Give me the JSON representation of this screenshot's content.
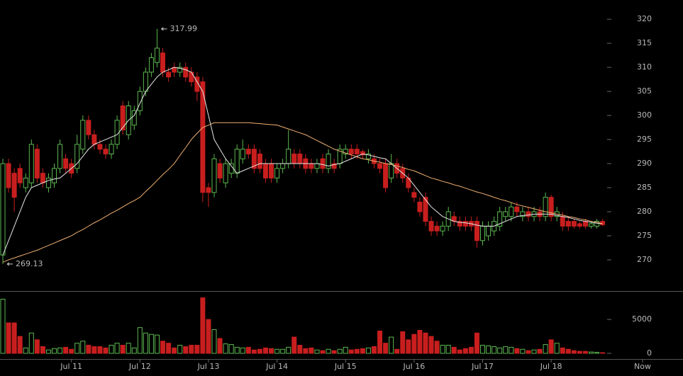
{
  "chart_data": {
    "type": "candlestick",
    "up_color": "#5cb84f",
    "down_color": "#c81e1e",
    "categories": [
      null,
      null,
      null,
      null,
      null,
      null,
      null,
      null,
      null,
      null,
      null,
      null,
      "Jul 11",
      null,
      null,
      null,
      null,
      null,
      null,
      null,
      null,
      null,
      null,
      null,
      "Jul 12",
      null,
      null,
      null,
      null,
      null,
      null,
      null,
      null,
      null,
      null,
      null,
      "Jul 13",
      null,
      null,
      null,
      null,
      null,
      null,
      null,
      null,
      null,
      null,
      null,
      "Jul 14",
      null,
      null,
      null,
      null,
      null,
      null,
      null,
      null,
      null,
      null,
      null,
      "Jul 15",
      null,
      null,
      null,
      null,
      null,
      null,
      null,
      null,
      null,
      null,
      null,
      "Jul 16",
      null,
      null,
      null,
      null,
      null,
      null,
      null,
      null,
      null,
      null,
      null,
      "Jul 17",
      null,
      null,
      null,
      null,
      null,
      null,
      null,
      null,
      null,
      null,
      null,
      "Jul 18",
      null,
      null,
      null,
      null,
      null,
      null,
      null,
      null,
      null,
      null,
      null,
      null,
      null,
      null,
      null,
      "Now"
    ],
    "ohlc": [
      [
        271,
        291,
        269.13,
        290
      ],
      [
        290,
        291,
        284,
        285
      ],
      [
        288,
        289,
        280,
        283
      ],
      [
        289,
        290,
        285,
        286
      ],
      [
        285,
        288,
        284,
        287
      ],
      [
        286,
        295,
        285,
        294
      ],
      [
        293,
        294,
        286,
        287
      ],
      [
        288,
        289,
        285,
        286
      ],
      [
        285,
        288,
        284,
        287
      ],
      [
        286,
        290,
        285,
        289
      ],
      [
        289,
        295,
        288,
        294
      ],
      [
        291,
        292,
        288,
        289
      ],
      [
        290,
        291,
        287,
        288
      ],
      [
        289,
        296,
        288,
        294
      ],
      [
        293,
        300,
        292,
        299
      ],
      [
        299,
        300,
        295,
        296
      ],
      [
        296,
        297,
        293,
        294
      ],
      [
        294,
        295,
        292,
        293
      ],
      [
        293,
        294,
        291,
        292
      ],
      [
        292,
        295,
        291,
        294
      ],
      [
        294,
        300,
        293,
        299
      ],
      [
        302,
        303,
        296,
        297
      ],
      [
        296,
        303,
        295,
        302
      ],
      [
        298,
        302,
        297,
        301
      ],
      [
        301,
        306,
        300,
        305
      ],
      [
        305,
        310,
        304,
        309
      ],
      [
        309,
        313,
        308,
        312
      ],
      [
        311,
        317.99,
        310,
        314
      ],
      [
        313,
        314,
        308,
        309
      ],
      [
        309,
        310,
        307,
        308
      ],
      [
        310,
        311,
        308,
        309
      ],
      [
        309,
        311,
        308,
        310
      ],
      [
        310,
        311,
        307,
        308
      ],
      [
        309,
        310,
        306,
        307
      ],
      [
        308,
        309,
        303,
        305
      ],
      [
        307,
        308,
        282,
        284
      ],
      [
        285,
        286,
        281,
        284
      ],
      [
        284,
        292,
        283,
        291
      ],
      [
        290,
        291,
        286,
        287
      ],
      [
        286,
        291,
        285,
        290
      ],
      [
        288,
        291,
        287,
        290
      ],
      [
        288,
        294,
        287,
        293
      ],
      [
        291,
        295,
        290,
        293
      ],
      [
        293,
        294,
        291,
        292
      ],
      [
        293,
        294,
        288,
        289
      ],
      [
        292,
        293,
        288,
        289
      ],
      [
        290,
        291,
        286,
        287
      ],
      [
        290,
        291,
        286,
        287
      ],
      [
        287,
        290,
        286,
        289
      ],
      [
        289,
        291,
        288,
        290
      ],
      [
        290,
        297,
        289,
        293
      ],
      [
        292,
        293,
        289,
        290
      ],
      [
        292,
        293,
        289,
        290
      ],
      [
        291,
        292,
        288,
        289
      ],
      [
        290,
        291,
        288,
        289
      ],
      [
        289,
        291,
        288,
        290
      ],
      [
        291,
        292,
        288,
        289
      ],
      [
        289,
        293,
        288,
        292
      ],
      [
        290,
        291,
        288,
        289
      ],
      [
        290,
        294,
        289,
        293
      ],
      [
        292,
        294,
        291,
        293
      ],
      [
        293,
        294,
        291,
        292
      ],
      [
        293,
        294,
        291,
        292
      ],
      [
        292.5,
        293,
        291,
        291.8
      ],
      [
        291,
        293,
        290,
        292
      ],
      [
        291,
        292,
        289,
        290
      ],
      [
        290,
        291,
        288,
        289
      ],
      [
        290,
        291,
        284,
        285
      ],
      [
        287,
        292,
        286,
        290
      ],
      [
        290,
        291,
        287,
        288
      ],
      [
        289,
        290,
        286,
        287
      ],
      [
        287,
        288,
        284,
        285
      ],
      [
        284,
        285,
        282,
        283
      ],
      [
        282,
        283,
        279,
        280
      ],
      [
        283,
        284,
        277,
        278
      ],
      [
        278,
        279,
        275,
        276
      ],
      [
        277,
        278,
        275,
        276
      ],
      [
        276,
        278,
        275,
        277
      ],
      [
        277,
        281,
        276,
        280
      ],
      [
        279,
        280,
        277,
        278
      ],
      [
        278,
        279,
        276,
        277
      ],
      [
        278,
        279,
        276,
        277
      ],
      [
        278,
        279,
        276,
        277
      ],
      [
        278,
        279,
        272.5,
        274
      ],
      [
        274,
        278,
        273,
        277
      ],
      [
        275,
        278,
        274,
        277
      ],
      [
        276,
        279,
        275,
        278
      ],
      [
        277,
        281,
        276,
        280
      ],
      [
        279,
        281,
        278,
        280
      ],
      [
        279,
        282,
        278,
        281
      ],
      [
        281,
        282,
        279,
        280
      ],
      [
        279,
        281,
        278,
        280
      ],
      [
        280,
        281,
        278,
        279
      ],
      [
        279,
        281,
        278,
        280
      ],
      [
        280,
        281,
        278,
        279
      ],
      [
        279,
        284,
        278,
        283
      ],
      [
        283,
        283.5,
        278,
        279
      ],
      [
        279,
        281,
        278,
        280
      ],
      [
        279,
        280,
        276,
        277
      ],
      [
        278,
        279,
        276,
        277
      ],
      [
        278,
        278.5,
        276.5,
        277
      ],
      [
        277.5,
        278,
        276.5,
        277
      ],
      [
        278,
        278.5,
        276.5,
        277
      ],
      [
        277,
        278,
        276.5,
        277.5
      ],
      [
        277,
        278.5,
        276.5,
        278
      ],
      [
        278,
        278.5,
        277,
        277.3
      ],
      null,
      null,
      null,
      null,
      null,
      null,
      null
    ],
    "volume": [
      8000,
      4500,
      4500,
      2500,
      800,
      3000,
      2000,
      1000,
      500,
      700,
      800,
      900,
      600,
      1500,
      1800,
      1200,
      1000,
      1000,
      800,
      1200,
      1500,
      1200,
      1500,
      800,
      3800,
      3000,
      2800,
      2700,
      1800,
      1500,
      800,
      1200,
      1000,
      1200,
      1200,
      8200,
      5000,
      3500,
      2200,
      1400,
      1300,
      900,
      800,
      900,
      500,
      600,
      800,
      700,
      600,
      600,
      900,
      2400,
      1200,
      700,
      800,
      500,
      400,
      600,
      400,
      600,
      900,
      500,
      600,
      700,
      800,
      1000,
      3300,
      1500,
      2400,
      600,
      3200,
      2000,
      2800,
      3400,
      3000,
      2500,
      1800,
      1200,
      1200,
      900,
      500,
      700,
      900,
      3000,
      1200,
      1100,
      1000,
      800,
      1000,
      900,
      700,
      600,
      400,
      500,
      600,
      1300,
      2000,
      1500,
      800,
      600,
      400,
      300,
      300,
      200,
      150,
      100,
      null,
      null,
      null,
      null,
      null,
      null,
      null
    ],
    "moving_averages": [
      {
        "color": "#e8e8e8",
        "values": [
          271,
          274,
          277,
          280,
          283,
          285,
          285.5,
          286,
          286.5,
          286.8,
          287,
          288,
          289,
          290,
          291.5,
          293,
          294,
          294.5,
          295,
          295.5,
          296,
          297.5,
          299,
          300,
          302.5,
          305,
          306.5,
          308,
          309,
          309.5,
          310,
          309.8,
          309.5,
          309,
          307,
          305,
          300,
          295,
          293,
          291,
          289.5,
          288,
          288.5,
          289,
          289.5,
          290,
          290,
          290,
          290,
          290,
          290,
          290,
          290,
          290,
          290,
          290,
          289.8,
          289.5,
          289.8,
          290,
          290.5,
          291,
          291.5,
          292,
          291.8,
          291.5,
          291.2,
          291,
          290,
          289,
          288,
          287,
          285.5,
          284,
          282.5,
          281,
          280,
          279,
          278.5,
          278,
          277.8,
          277.7,
          277.5,
          277.2,
          277,
          277,
          277,
          277.5,
          278,
          278.5,
          279,
          279.2,
          279.3,
          279.5,
          279.5,
          279.5,
          279.5,
          279.2,
          279,
          278.8,
          278.5,
          278.2,
          278,
          277.8,
          277.6,
          277.5,
          null,
          null,
          null,
          null,
          null,
          null,
          null
        ]
      },
      {
        "color": "#f0b070",
        "values": [
          269.5,
          270,
          270.4,
          270.8,
          271.2,
          271.6,
          272,
          272.5,
          273,
          273.5,
          274,
          274.5,
          275,
          275.7,
          276.3,
          277,
          277.7,
          278.3,
          279,
          279.7,
          280.3,
          281,
          281.7,
          282.3,
          283,
          284.2,
          285.3,
          286.5,
          287.7,
          288.8,
          290,
          291.7,
          293.3,
          295,
          296.3,
          297.5,
          298,
          298.5,
          298.5,
          298.5,
          298.5,
          298.5,
          298.5,
          298.5,
          298.4,
          298.3,
          298.2,
          298.1,
          298,
          297.6,
          297.2,
          296.8,
          296.4,
          296,
          295.4,
          294.8,
          294.2,
          293.6,
          293,
          292.6,
          292.2,
          291.8,
          291.4,
          291,
          290.8,
          290.5,
          290.3,
          290,
          289.8,
          289.5,
          289.2,
          288.8,
          288.5,
          288,
          287.5,
          287,
          286.7,
          286.3,
          286,
          285.6,
          285.3,
          284.9,
          284.5,
          284.1,
          283.8,
          283.4,
          283,
          282.6,
          282.3,
          281.9,
          281.5,
          281.2,
          280.9,
          280.6,
          280.3,
          280,
          279.8,
          279.5,
          279.3,
          279,
          278.8,
          278.5,
          278.3,
          278,
          277.8,
          277.5,
          null,
          null,
          null,
          null,
          null,
          null,
          null
        ]
      }
    ],
    "ylim": [
      264.4,
      324
    ],
    "yticks": [
      270,
      275,
      280,
      285,
      290,
      295,
      300,
      305,
      310,
      315,
      320
    ],
    "volume_ylim": [
      0,
      9200
    ],
    "volume_yticks": [
      0,
      5000
    ]
  }
}
